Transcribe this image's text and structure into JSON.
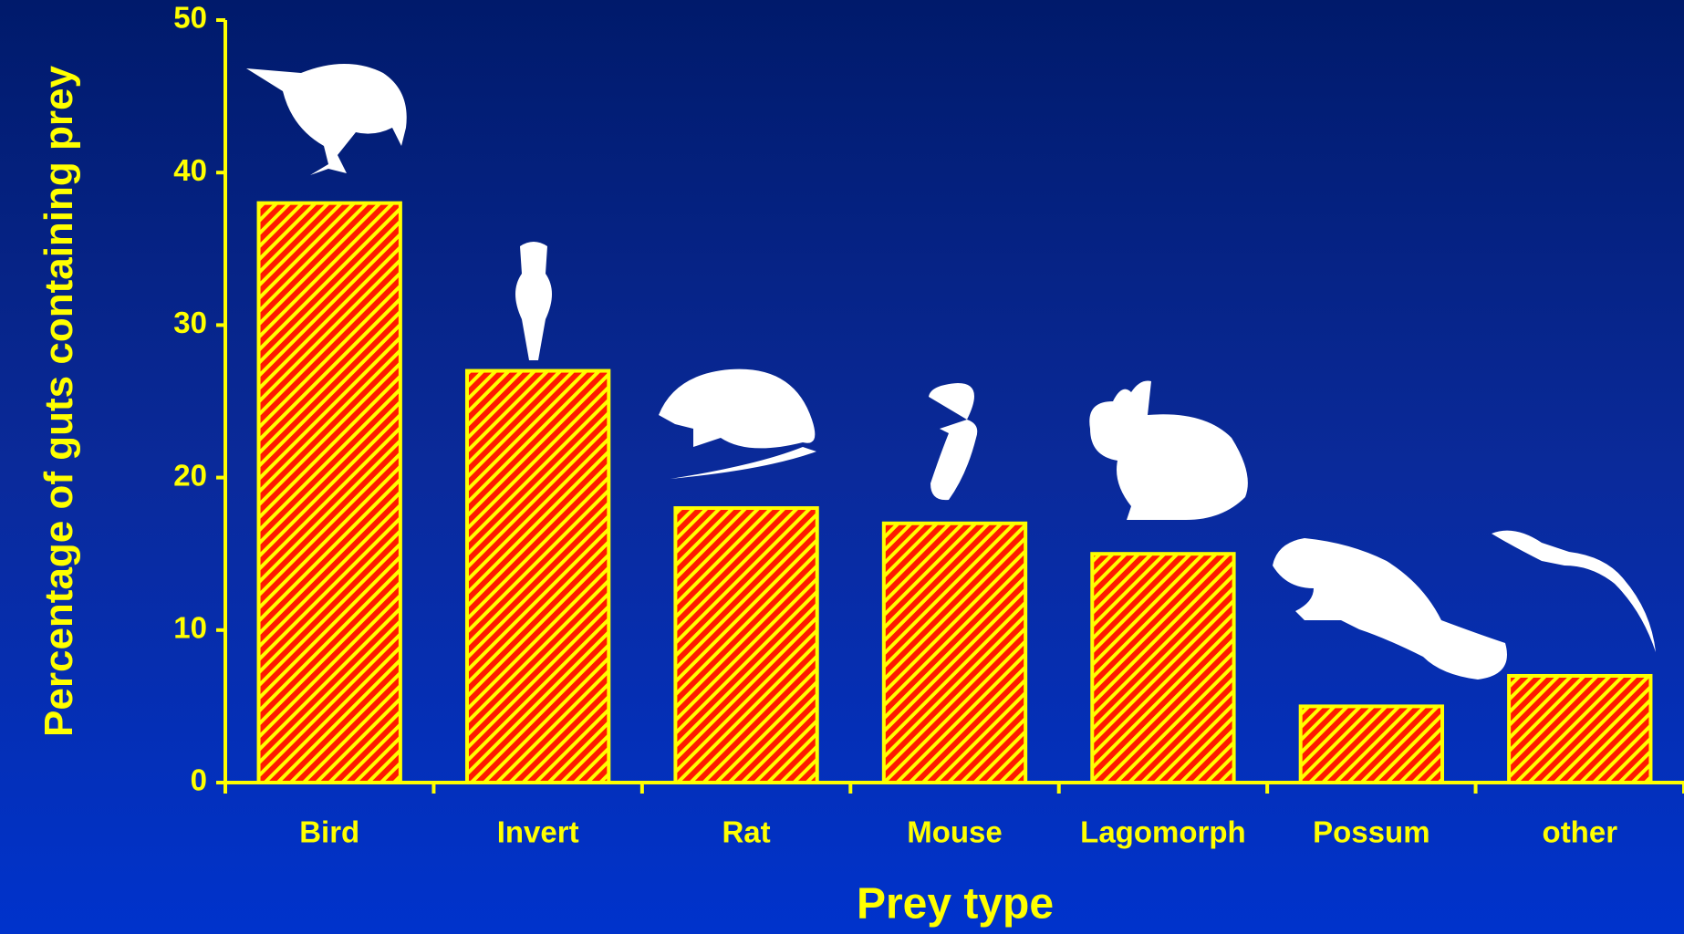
{
  "chart_data": {
    "type": "bar",
    "categories": [
      "Bird",
      "Invert",
      "Rat",
      "Mouse",
      "Lagomorph",
      "Possum",
      "other"
    ],
    "values": [
      38,
      27,
      18,
      17,
      15,
      5,
      7
    ],
    "color": "#ff1a00",
    "hatch_color": "#ffff00",
    "x_label": "Prey type",
    "y_label": "Percentage of guts containing prey",
    "ylim": [
      0,
      50
    ],
    "yticks": [
      0,
      10,
      20,
      30,
      40,
      50
    ],
    "grid": false
  }
}
